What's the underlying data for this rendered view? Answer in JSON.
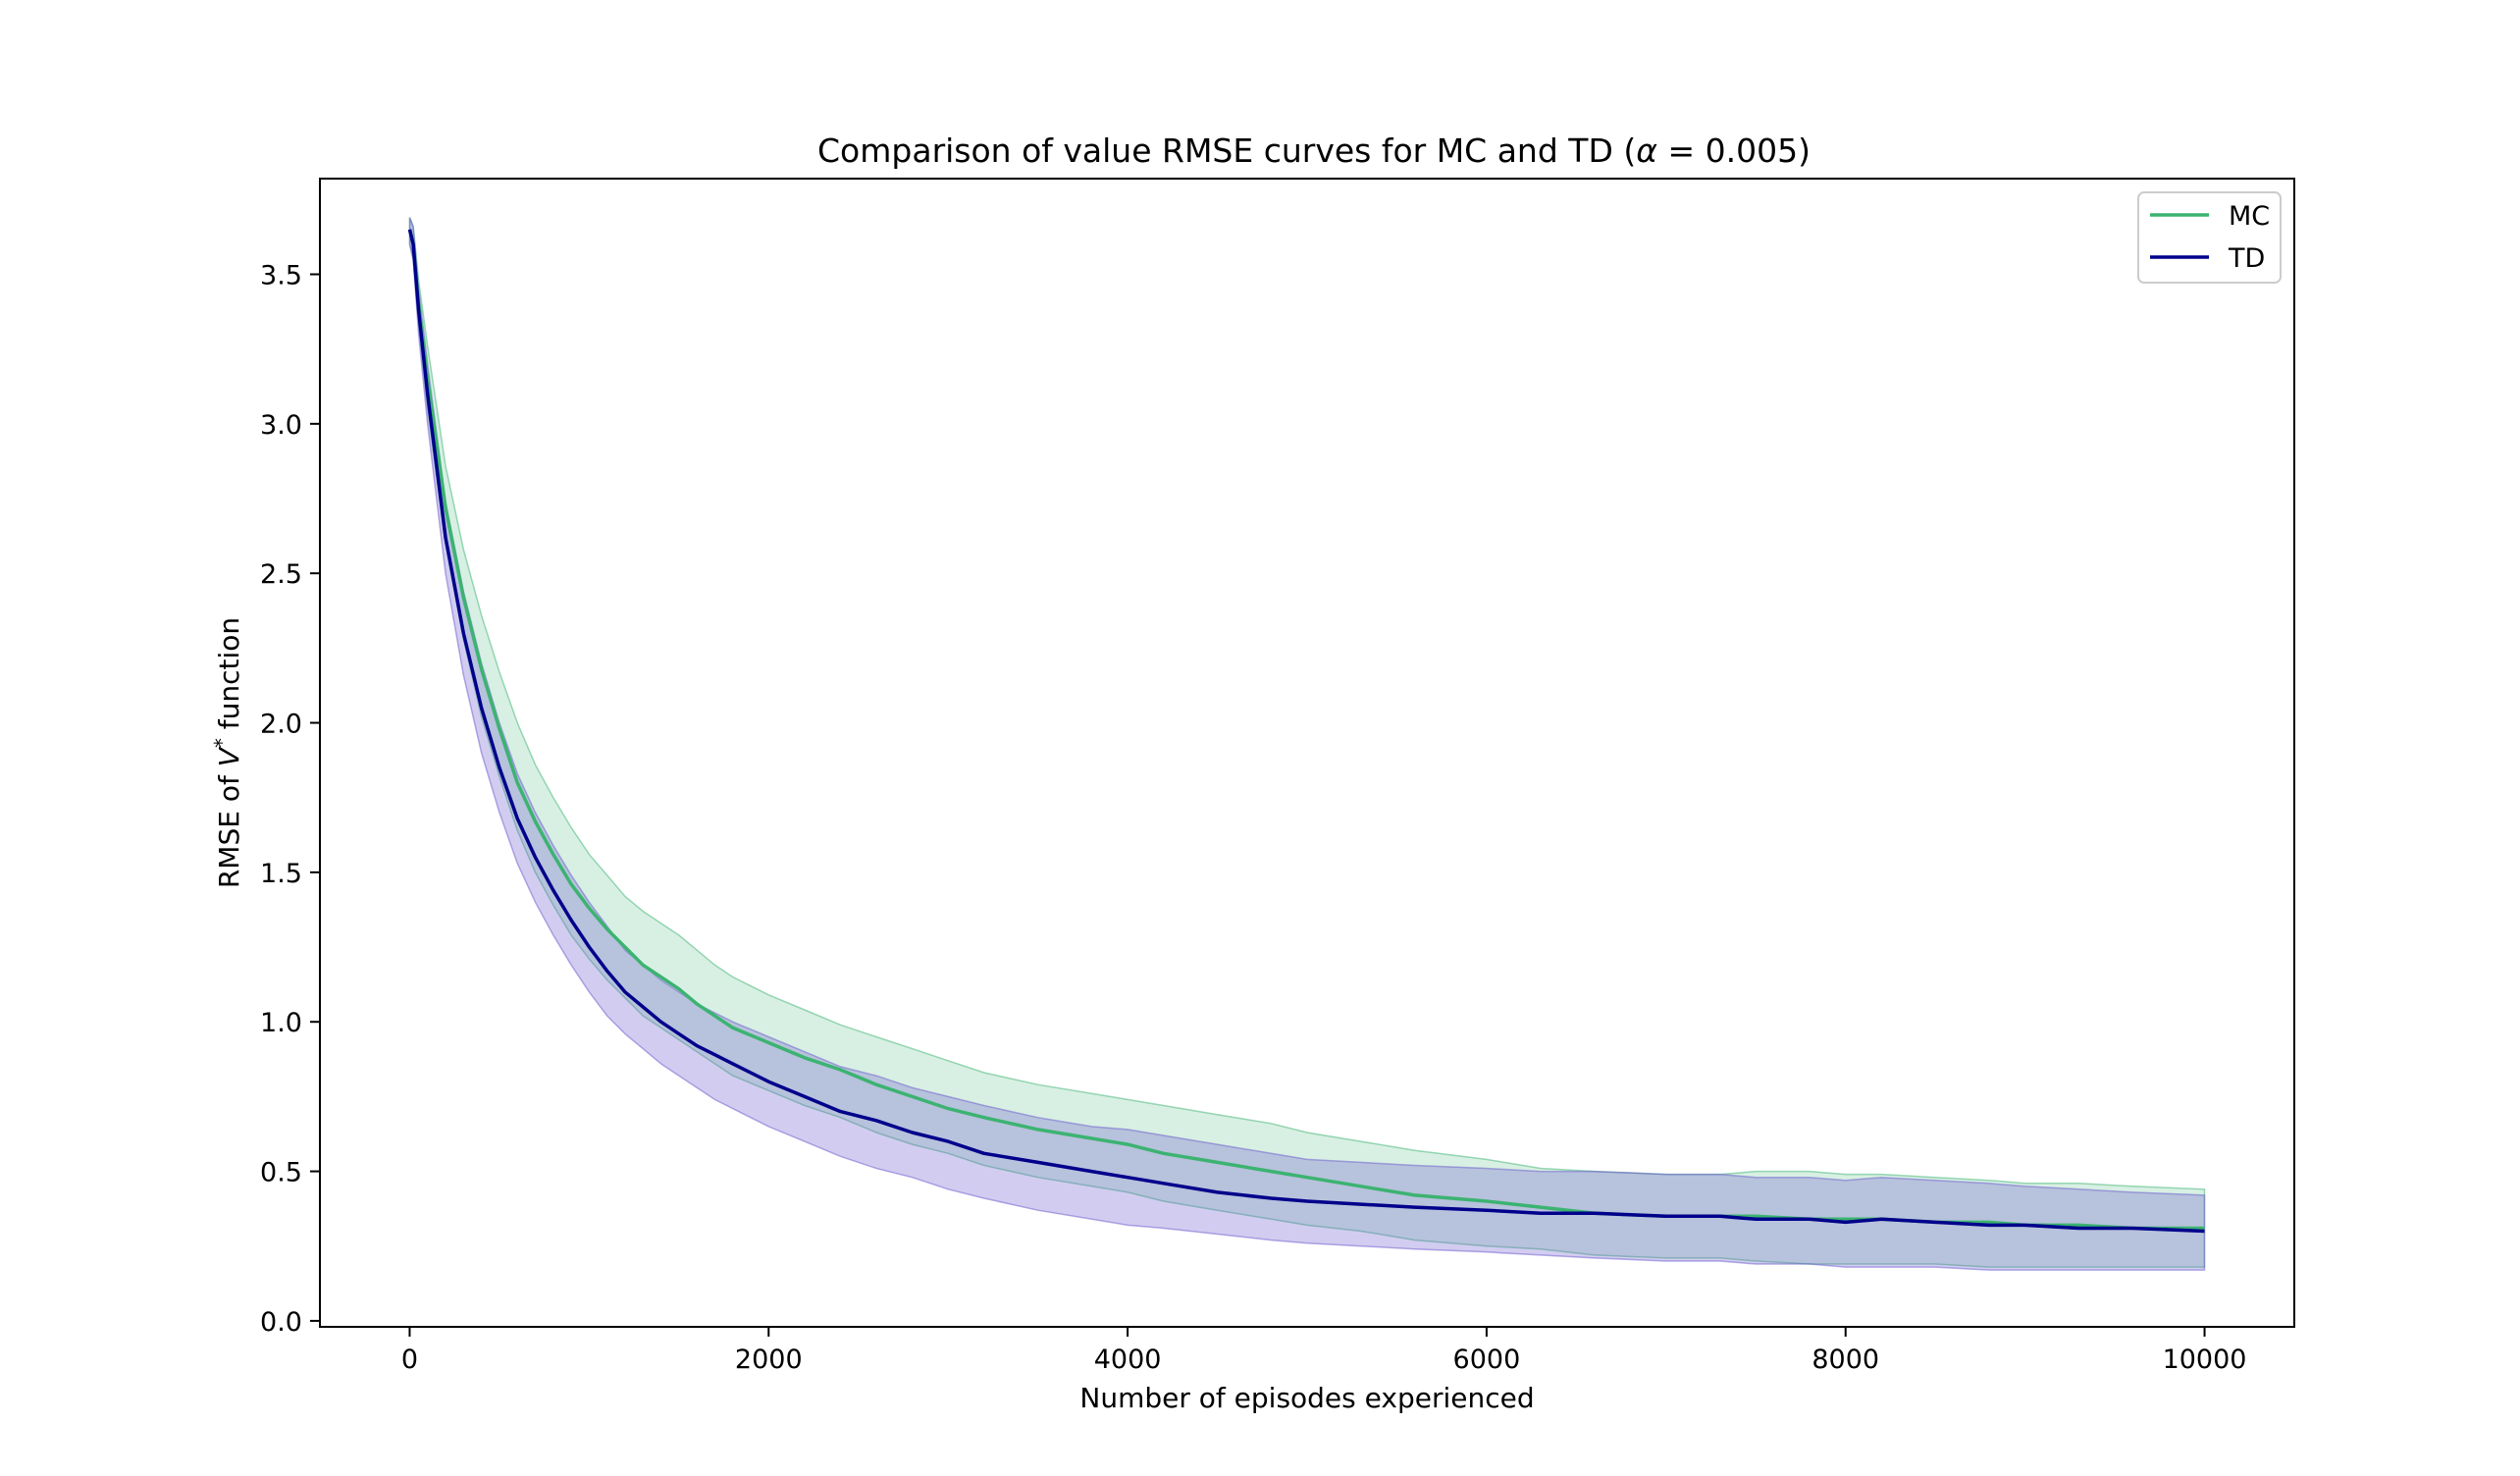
{
  "chart_data": {
    "type": "line",
    "title_prefix": "Comparison of value RMSE curves for MC and TD (",
    "title_alpha": "α",
    "title_suffix": " = 0.005)",
    "xlabel": "Number of episodes experienced",
    "ylabel_prefix": "RMSE of ",
    "ylabel_var": "V",
    "ylabel_sup": "*",
    "ylabel_suffix": " function",
    "xlim": [
      -500,
      10500
    ],
    "ylim": [
      -0.02,
      3.82
    ],
    "xticks": [
      0,
      2000,
      4000,
      6000,
      8000,
      10000
    ],
    "xtick_labels": [
      "0",
      "2000",
      "4000",
      "6000",
      "8000",
      "10000"
    ],
    "yticks": [
      0.0,
      0.5,
      1.0,
      1.5,
      2.0,
      2.5,
      3.0,
      3.5
    ],
    "ytick_labels": [
      "0.0",
      "0.5",
      "1.0",
      "1.5",
      "2.0",
      "2.5",
      "3.0",
      "3.5"
    ],
    "grid": false,
    "legend_position": "top-right",
    "x": [
      0,
      20,
      50,
      100,
      200,
      300,
      400,
      500,
      600,
      700,
      800,
      900,
      1000,
      1100,
      1200,
      1300,
      1400,
      1500,
      1600,
      1700,
      1800,
      2000,
      2200,
      2400,
      2600,
      2800,
      3000,
      3200,
      3500,
      3800,
      4000,
      4200,
      4500,
      4800,
      5000,
      5300,
      5600,
      6000,
      6300,
      6600,
      7000,
      7300,
      7500,
      7800,
      8000,
      8200,
      8500,
      8800,
      9000,
      9300,
      9600,
      10000
    ],
    "series": [
      {
        "name": "MC",
        "color": "#3cb371",
        "band_color": "#3cb371",
        "band_opacity": 0.2,
        "values": [
          3.65,
          3.6,
          3.4,
          3.15,
          2.72,
          2.42,
          2.18,
          1.98,
          1.8,
          1.67,
          1.56,
          1.46,
          1.38,
          1.31,
          1.25,
          1.19,
          1.15,
          1.11,
          1.06,
          1.02,
          0.98,
          0.93,
          0.88,
          0.84,
          0.79,
          0.75,
          0.71,
          0.68,
          0.64,
          0.61,
          0.59,
          0.56,
          0.53,
          0.5,
          0.48,
          0.45,
          0.42,
          0.4,
          0.38,
          0.36,
          0.35,
          0.35,
          0.35,
          0.34,
          0.34,
          0.34,
          0.33,
          0.33,
          0.32,
          0.32,
          0.31,
          0.31
        ],
        "lower": [
          3.6,
          3.55,
          3.33,
          3.05,
          2.6,
          2.28,
          2.02,
          1.82,
          1.64,
          1.5,
          1.39,
          1.29,
          1.21,
          1.14,
          1.08,
          1.02,
          0.98,
          0.94,
          0.9,
          0.86,
          0.82,
          0.77,
          0.72,
          0.68,
          0.63,
          0.59,
          0.56,
          0.52,
          0.48,
          0.45,
          0.43,
          0.4,
          0.37,
          0.34,
          0.32,
          0.3,
          0.27,
          0.25,
          0.24,
          0.22,
          0.21,
          0.21,
          0.2,
          0.19,
          0.19,
          0.19,
          0.19,
          0.18,
          0.18,
          0.18,
          0.18,
          0.18
        ],
        "upper": [
          3.69,
          3.66,
          3.48,
          3.26,
          2.86,
          2.58,
          2.36,
          2.17,
          2.0,
          1.86,
          1.75,
          1.65,
          1.56,
          1.49,
          1.42,
          1.37,
          1.33,
          1.29,
          1.24,
          1.19,
          1.15,
          1.09,
          1.04,
          0.99,
          0.95,
          0.91,
          0.87,
          0.83,
          0.79,
          0.76,
          0.74,
          0.72,
          0.69,
          0.66,
          0.63,
          0.6,
          0.57,
          0.54,
          0.51,
          0.5,
          0.49,
          0.49,
          0.5,
          0.5,
          0.49,
          0.49,
          0.48,
          0.47,
          0.46,
          0.46,
          0.45,
          0.44
        ]
      },
      {
        "name": "TD",
        "color": "#00008b",
        "band_color": "#6a5acd",
        "band_opacity": 0.3,
        "values": [
          3.65,
          3.6,
          3.38,
          3.1,
          2.62,
          2.3,
          2.05,
          1.85,
          1.68,
          1.55,
          1.44,
          1.34,
          1.25,
          1.17,
          1.1,
          1.05,
          1.0,
          0.96,
          0.92,
          0.89,
          0.86,
          0.8,
          0.75,
          0.7,
          0.67,
          0.63,
          0.6,
          0.56,
          0.53,
          0.5,
          0.48,
          0.46,
          0.43,
          0.41,
          0.4,
          0.39,
          0.38,
          0.37,
          0.36,
          0.36,
          0.35,
          0.35,
          0.34,
          0.34,
          0.33,
          0.34,
          0.33,
          0.32,
          0.32,
          0.31,
          0.31,
          0.3
        ],
        "lower": [
          3.6,
          3.55,
          3.3,
          3.0,
          2.5,
          2.16,
          1.9,
          1.7,
          1.53,
          1.4,
          1.29,
          1.19,
          1.1,
          1.02,
          0.96,
          0.91,
          0.86,
          0.82,
          0.78,
          0.74,
          0.71,
          0.65,
          0.6,
          0.55,
          0.51,
          0.48,
          0.44,
          0.41,
          0.37,
          0.34,
          0.32,
          0.31,
          0.29,
          0.27,
          0.26,
          0.25,
          0.24,
          0.23,
          0.22,
          0.21,
          0.2,
          0.2,
          0.19,
          0.19,
          0.18,
          0.18,
          0.18,
          0.17,
          0.17,
          0.17,
          0.17,
          0.17
        ],
        "upper": [
          3.69,
          3.66,
          3.45,
          3.2,
          2.74,
          2.44,
          2.2,
          2.0,
          1.83,
          1.7,
          1.59,
          1.49,
          1.4,
          1.32,
          1.24,
          1.19,
          1.14,
          1.1,
          1.06,
          1.03,
          1.0,
          0.95,
          0.9,
          0.85,
          0.82,
          0.78,
          0.75,
          0.72,
          0.68,
          0.65,
          0.64,
          0.62,
          0.59,
          0.56,
          0.54,
          0.53,
          0.52,
          0.51,
          0.5,
          0.5,
          0.49,
          0.49,
          0.48,
          0.48,
          0.47,
          0.48,
          0.47,
          0.46,
          0.45,
          0.44,
          0.43,
          0.42
        ]
      }
    ]
  }
}
